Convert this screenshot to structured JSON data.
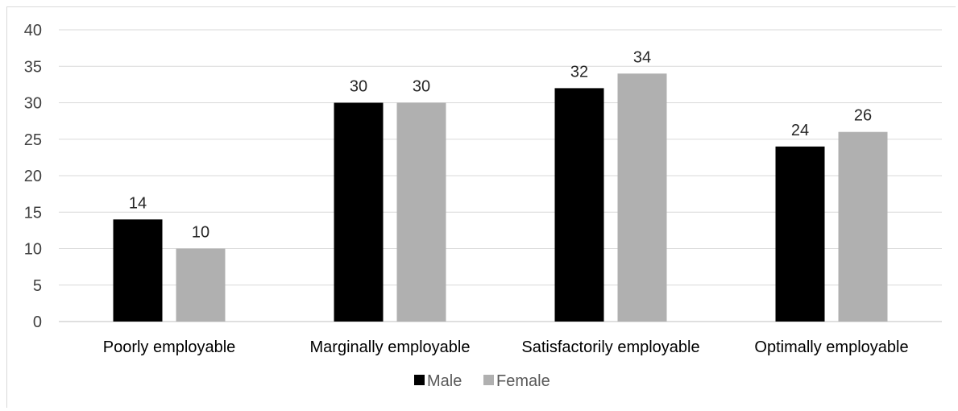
{
  "chart_data": {
    "type": "bar",
    "title": "",
    "xlabel": "",
    "ylabel": "",
    "ylim": [
      0,
      40
    ],
    "yticks": [
      0,
      5,
      10,
      15,
      20,
      25,
      30,
      35,
      40
    ],
    "grid": true,
    "legend_position": "bottom",
    "categories": [
      "Poorly employable",
      "Marginally employable",
      "Satisfactorily employable",
      "Optimally employable"
    ],
    "series": [
      {
        "name": "Male",
        "values": [
          14,
          30,
          32,
          24
        ],
        "color": "#000000"
      },
      {
        "name": "Female",
        "values": [
          10,
          30,
          34,
          26
        ],
        "color": "#b0b0b0"
      }
    ]
  }
}
